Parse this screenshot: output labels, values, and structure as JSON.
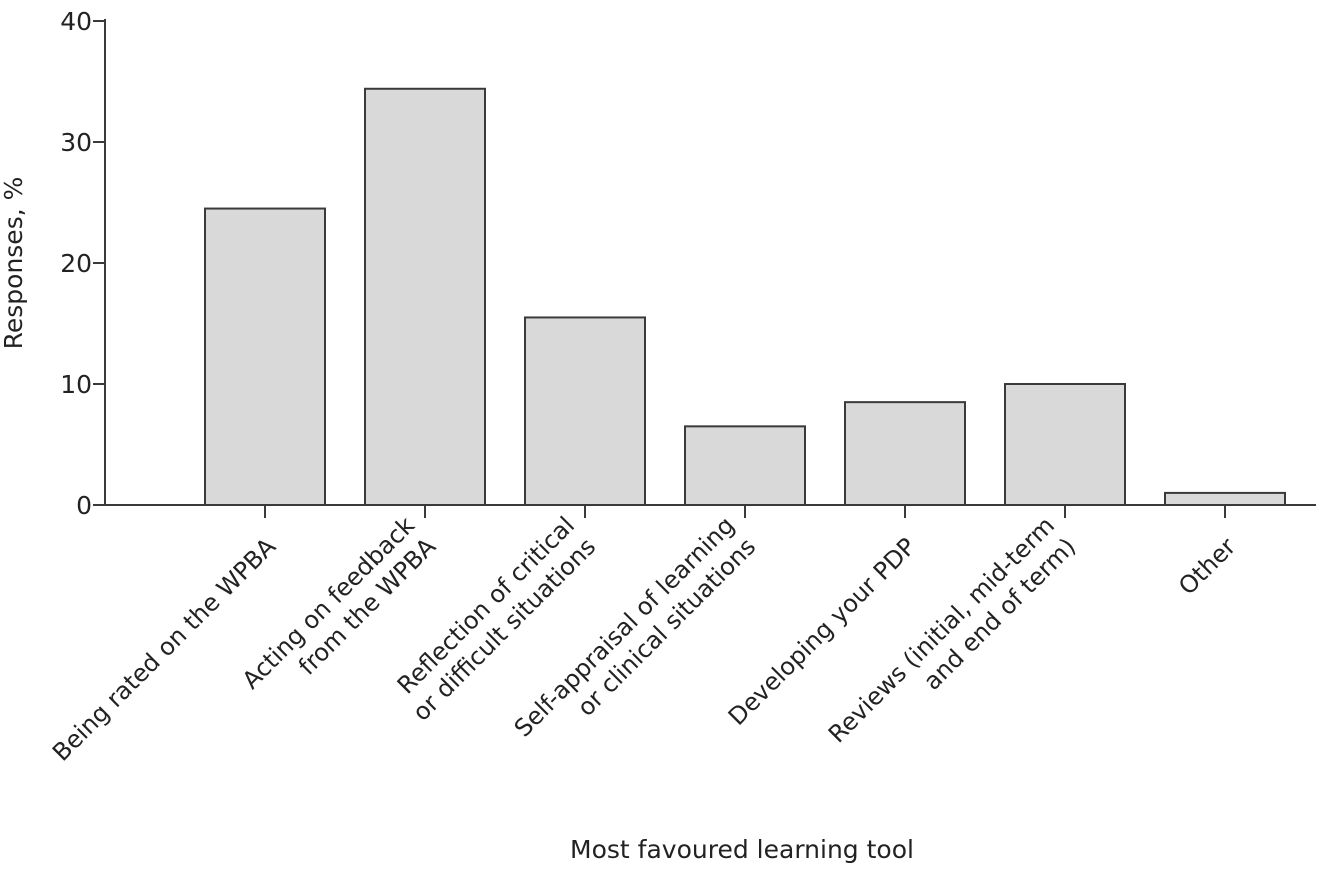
{
  "chart_data": {
    "type": "bar",
    "title": "",
    "xlabel": "Most favoured learning tool",
    "ylabel": "Responses, %",
    "ylim": [
      0,
      40
    ],
    "yticks": [
      "0",
      "10",
      "20",
      "30",
      "40"
    ],
    "categories": [
      [
        "Being rated on the WPBA"
      ],
      [
        "Acting on feedback",
        "from the WPBA"
      ],
      [
        "Reflection of critical",
        "or difficult situations"
      ],
      [
        "Self-appraisal of learning",
        "or clinical situations"
      ],
      [
        "Developing your PDP"
      ],
      [
        "Reviews (initial, mid-term",
        "and end of term)"
      ],
      [
        "Other"
      ]
    ],
    "values": [
      24.5,
      34.4,
      15.5,
      6.5,
      8.5,
      10.0,
      1.0
    ],
    "grid": false,
    "legend": "none",
    "colors": {
      "bar_fill": "#d9d9d9",
      "bar_stroke": "#3a3a3a",
      "axis": "#3a3a3a"
    }
  }
}
